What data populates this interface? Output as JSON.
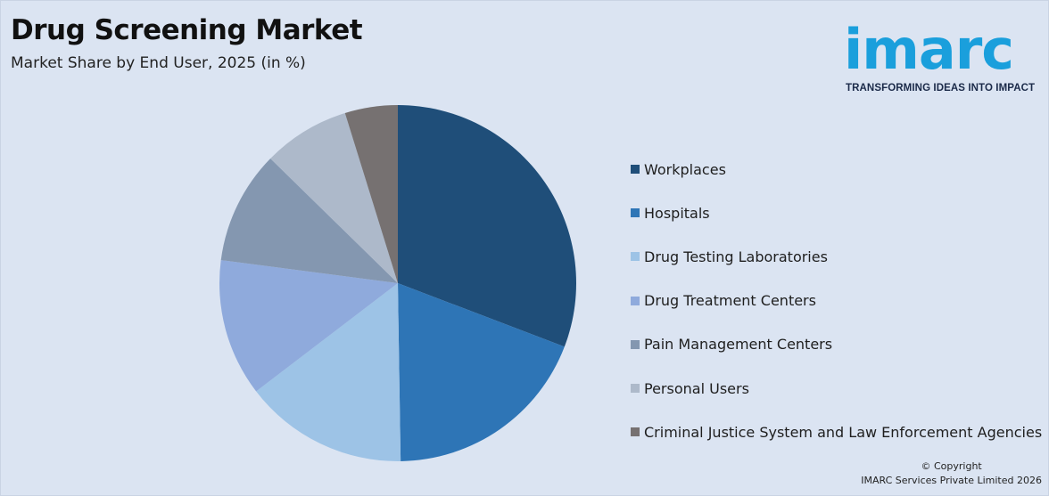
{
  "header": {
    "title": "Drug Screening Market",
    "subtitle": "Market Share by End User, 2025 (in %)"
  },
  "logo": {
    "wordmark": "imarc",
    "tagline": "TRANSFORMING IDEAS INTO IMPACT",
    "color": "#1a9fdc"
  },
  "footer": {
    "copyright_line1": "© Copyright",
    "copyright_line2": "IMARC Services Private Limited 2026"
  },
  "chart_data": {
    "type": "pie",
    "title": "Drug Screening Market",
    "subtitle": "Market Share by End User, 2025 (in %)",
    "start_angle_deg": 0,
    "direction": "clockwise",
    "legend_position": "right",
    "categories": [
      "Workplaces",
      "Hospitals",
      "Drug Testing Laboratories",
      "Drug Treatment Centers",
      "Pain Management Centers",
      "Personal Users",
      "Criminal Justice System and Law Enforcement Agencies"
    ],
    "values": [
      30.9,
      19.0,
      14.9,
      12.5,
      10.3,
      7.9,
      4.8
    ],
    "colors": [
      "#1f4e79",
      "#2e75b6",
      "#9dc3e6",
      "#8faadc",
      "#8497b0",
      "#adb9ca",
      "#767171"
    ]
  }
}
